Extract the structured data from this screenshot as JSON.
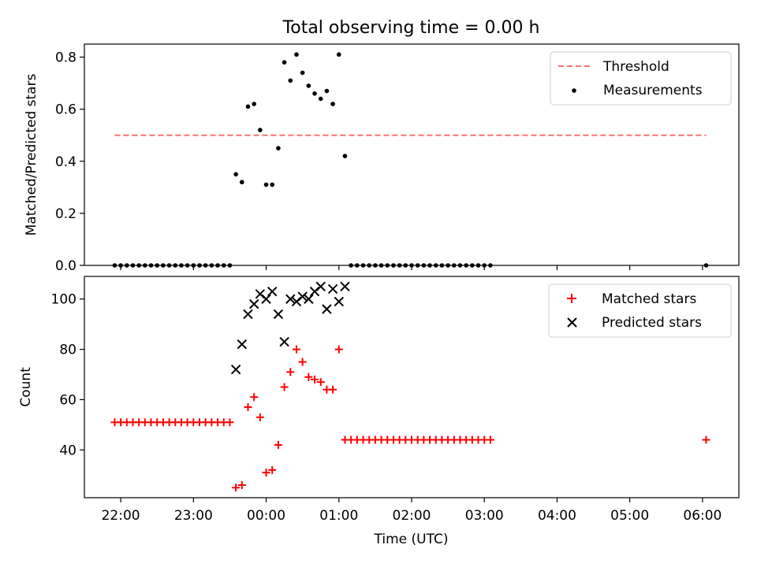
{
  "title": "Total observing time = 0.00 h",
  "colors": {
    "threshold": "#ff7070",
    "measurement": "#000000",
    "matched": "#ff0000",
    "predicted": "#000000"
  },
  "chart_data": [
    {
      "type": "scatter",
      "panel": "top",
      "ylabel": "Matched/Predicted stars",
      "xlabel": "",
      "ylim": [
        0,
        0.85
      ],
      "yticks": [
        0.0,
        0.2,
        0.4,
        0.6,
        0.8
      ],
      "ytick_labels": [
        "0.0",
        "0.2",
        "0.4",
        "0.6",
        "0.8"
      ],
      "xticks": [
        "2024-01-01 22:00",
        "2024-01-01 23:00",
        "2024-01-02 00:00",
        "2024-01-02 01:00",
        "2024-01-02 02:00",
        "2024-01-02 03:00",
        "2024-01-02 04:00",
        "2024-01-02 05:00",
        "2024-01-02 06:00"
      ],
      "legend": "top-right",
      "legend_entries": [
        "Threshold",
        "Measurements"
      ],
      "threshold": {
        "name": "Threshold",
        "value": 0.5,
        "x": [
          "2024-01-01 21:55",
          "2024-01-02 06:03"
        ]
      },
      "series": [
        {
          "name": "Measurements",
          "points": [
            [
              "2024-01-01 21:55",
              0
            ],
            [
              "2024-01-01 22:00",
              0
            ],
            [
              "2024-01-01 22:05",
              0
            ],
            [
              "2024-01-01 22:10",
              0
            ],
            [
              "2024-01-01 22:15",
              0
            ],
            [
              "2024-01-01 22:20",
              0
            ],
            [
              "2024-01-01 22:25",
              0
            ],
            [
              "2024-01-01 22:30",
              0
            ],
            [
              "2024-01-01 22:35",
              0
            ],
            [
              "2024-01-01 22:40",
              0
            ],
            [
              "2024-01-01 22:45",
              0
            ],
            [
              "2024-01-01 22:50",
              0
            ],
            [
              "2024-01-01 22:55",
              0
            ],
            [
              "2024-01-01 23:00",
              0
            ],
            [
              "2024-01-01 23:05",
              0
            ],
            [
              "2024-01-01 23:10",
              0
            ],
            [
              "2024-01-01 23:15",
              0
            ],
            [
              "2024-01-01 23:20",
              0
            ],
            [
              "2024-01-01 23:25",
              0
            ],
            [
              "2024-01-01 23:30",
              0
            ],
            [
              "2024-01-01 23:35",
              0.35
            ],
            [
              "2024-01-01 23:40",
              0.32
            ],
            [
              "2024-01-01 23:45",
              0.61
            ],
            [
              "2024-01-01 23:50",
              0.62
            ],
            [
              "2024-01-01 23:55",
              0.52
            ],
            [
              "2024-01-02 00:00",
              0.31
            ],
            [
              "2024-01-02 00:05",
              0.31
            ],
            [
              "2024-01-02 00:10",
              0.45
            ],
            [
              "2024-01-02 00:15",
              0.78
            ],
            [
              "2024-01-02 00:20",
              0.71
            ],
            [
              "2024-01-02 00:25",
              0.81
            ],
            [
              "2024-01-02 00:30",
              0.74
            ],
            [
              "2024-01-02 00:35",
              0.69
            ],
            [
              "2024-01-02 00:40",
              0.66
            ],
            [
              "2024-01-02 00:45",
              0.64
            ],
            [
              "2024-01-02 00:50",
              0.67
            ],
            [
              "2024-01-02 00:55",
              0.62
            ],
            [
              "2024-01-02 01:00",
              0.81
            ],
            [
              "2024-01-02 01:05",
              0.42
            ],
            [
              "2024-01-02 01:10",
              0
            ],
            [
              "2024-01-02 01:15",
              0
            ],
            [
              "2024-01-02 01:20",
              0
            ],
            [
              "2024-01-02 01:25",
              0
            ],
            [
              "2024-01-02 01:30",
              0
            ],
            [
              "2024-01-02 01:35",
              0
            ],
            [
              "2024-01-02 01:40",
              0
            ],
            [
              "2024-01-02 01:45",
              0
            ],
            [
              "2024-01-02 01:50",
              0
            ],
            [
              "2024-01-02 01:55",
              0
            ],
            [
              "2024-01-02 02:00",
              0
            ],
            [
              "2024-01-02 02:05",
              0
            ],
            [
              "2024-01-02 02:10",
              0
            ],
            [
              "2024-01-02 02:15",
              0
            ],
            [
              "2024-01-02 02:20",
              0
            ],
            [
              "2024-01-02 02:25",
              0
            ],
            [
              "2024-01-02 02:30",
              0
            ],
            [
              "2024-01-02 02:35",
              0
            ],
            [
              "2024-01-02 02:40",
              0
            ],
            [
              "2024-01-02 02:45",
              0
            ],
            [
              "2024-01-02 02:50",
              0
            ],
            [
              "2024-01-02 02:55",
              0
            ],
            [
              "2024-01-02 03:00",
              0
            ],
            [
              "2024-01-02 03:05",
              0
            ],
            [
              "2024-01-02 06:03",
              0
            ]
          ]
        }
      ]
    },
    {
      "type": "scatter",
      "panel": "bottom",
      "ylabel": "Count",
      "xlabel": "Time (UTC)",
      "ylim": [
        21,
        109
      ],
      "yticks": [
        40,
        60,
        80,
        100
      ],
      "ytick_labels": [
        "40",
        "60",
        "80",
        "100"
      ],
      "xticks": [
        "2024-01-01 22:00",
        "2024-01-01 23:00",
        "2024-01-02 00:00",
        "2024-01-02 01:00",
        "2024-01-02 02:00",
        "2024-01-02 03:00",
        "2024-01-02 04:00",
        "2024-01-02 05:00",
        "2024-01-02 06:00"
      ],
      "xtick_labels": [
        "22:00",
        "23:00",
        "00:00",
        "01:00",
        "02:00",
        "03:00",
        "04:00",
        "05:00",
        "06:00"
      ],
      "legend": "top-right",
      "legend_entries": [
        "Matched stars",
        "Predicted stars"
      ],
      "series": [
        {
          "name": "Matched stars",
          "marker": "plus",
          "points": [
            [
              "2024-01-01 21:55",
              51
            ],
            [
              "2024-01-01 22:00",
              51
            ],
            [
              "2024-01-01 22:05",
              51
            ],
            [
              "2024-01-01 22:10",
              51
            ],
            [
              "2024-01-01 22:15",
              51
            ],
            [
              "2024-01-01 22:20",
              51
            ],
            [
              "2024-01-01 22:25",
              51
            ],
            [
              "2024-01-01 22:30",
              51
            ],
            [
              "2024-01-01 22:35",
              51
            ],
            [
              "2024-01-01 22:40",
              51
            ],
            [
              "2024-01-01 22:45",
              51
            ],
            [
              "2024-01-01 22:50",
              51
            ],
            [
              "2024-01-01 22:55",
              51
            ],
            [
              "2024-01-01 23:00",
              51
            ],
            [
              "2024-01-01 23:05",
              51
            ],
            [
              "2024-01-01 23:10",
              51
            ],
            [
              "2024-01-01 23:15",
              51
            ],
            [
              "2024-01-01 23:20",
              51
            ],
            [
              "2024-01-01 23:25",
              51
            ],
            [
              "2024-01-01 23:30",
              51
            ],
            [
              "2024-01-01 23:35",
              25
            ],
            [
              "2024-01-01 23:40",
              26
            ],
            [
              "2024-01-01 23:45",
              57
            ],
            [
              "2024-01-01 23:50",
              61
            ],
            [
              "2024-01-01 23:55",
              53
            ],
            [
              "2024-01-02 00:00",
              31
            ],
            [
              "2024-01-02 00:05",
              32
            ],
            [
              "2024-01-02 00:10",
              42
            ],
            [
              "2024-01-02 00:15",
              65
            ],
            [
              "2024-01-02 00:20",
              71
            ],
            [
              "2024-01-02 00:25",
              80
            ],
            [
              "2024-01-02 00:30",
              75
            ],
            [
              "2024-01-02 00:35",
              69
            ],
            [
              "2024-01-02 00:40",
              68
            ],
            [
              "2024-01-02 00:45",
              67
            ],
            [
              "2024-01-02 00:50",
              64
            ],
            [
              "2024-01-02 00:55",
              64
            ],
            [
              "2024-01-02 01:00",
              80
            ],
            [
              "2024-01-02 01:05",
              44
            ],
            [
              "2024-01-02 01:10",
              44
            ],
            [
              "2024-01-02 01:15",
              44
            ],
            [
              "2024-01-02 01:20",
              44
            ],
            [
              "2024-01-02 01:25",
              44
            ],
            [
              "2024-01-02 01:30",
              44
            ],
            [
              "2024-01-02 01:35",
              44
            ],
            [
              "2024-01-02 01:40",
              44
            ],
            [
              "2024-01-02 01:45",
              44
            ],
            [
              "2024-01-02 01:50",
              44
            ],
            [
              "2024-01-02 01:55",
              44
            ],
            [
              "2024-01-02 02:00",
              44
            ],
            [
              "2024-01-02 02:05",
              44
            ],
            [
              "2024-01-02 02:10",
              44
            ],
            [
              "2024-01-02 02:15",
              44
            ],
            [
              "2024-01-02 02:20",
              44
            ],
            [
              "2024-01-02 02:25",
              44
            ],
            [
              "2024-01-02 02:30",
              44
            ],
            [
              "2024-01-02 02:35",
              44
            ],
            [
              "2024-01-02 02:40",
              44
            ],
            [
              "2024-01-02 02:45",
              44
            ],
            [
              "2024-01-02 02:50",
              44
            ],
            [
              "2024-01-02 02:55",
              44
            ],
            [
              "2024-01-02 03:00",
              44
            ],
            [
              "2024-01-02 03:05",
              44
            ],
            [
              "2024-01-02 06:03",
              44
            ]
          ]
        },
        {
          "name": "Predicted stars",
          "marker": "x",
          "points": [
            [
              "2024-01-01 23:35",
              72
            ],
            [
              "2024-01-01 23:40",
              82
            ],
            [
              "2024-01-01 23:45",
              94
            ],
            [
              "2024-01-01 23:50",
              98
            ],
            [
              "2024-01-01 23:55",
              102
            ],
            [
              "2024-01-02 00:00",
              100
            ],
            [
              "2024-01-02 00:05",
              103
            ],
            [
              "2024-01-02 00:10",
              94
            ],
            [
              "2024-01-02 00:15",
              83
            ],
            [
              "2024-01-02 00:20",
              100
            ],
            [
              "2024-01-02 00:25",
              99
            ],
            [
              "2024-01-02 00:30",
              101
            ],
            [
              "2024-01-02 00:35",
              100
            ],
            [
              "2024-01-02 00:40",
              103
            ],
            [
              "2024-01-02 00:45",
              105
            ],
            [
              "2024-01-02 00:50",
              96
            ],
            [
              "2024-01-02 00:55",
              104
            ],
            [
              "2024-01-02 01:00",
              99
            ],
            [
              "2024-01-02 01:05",
              105
            ]
          ]
        }
      ]
    }
  ]
}
